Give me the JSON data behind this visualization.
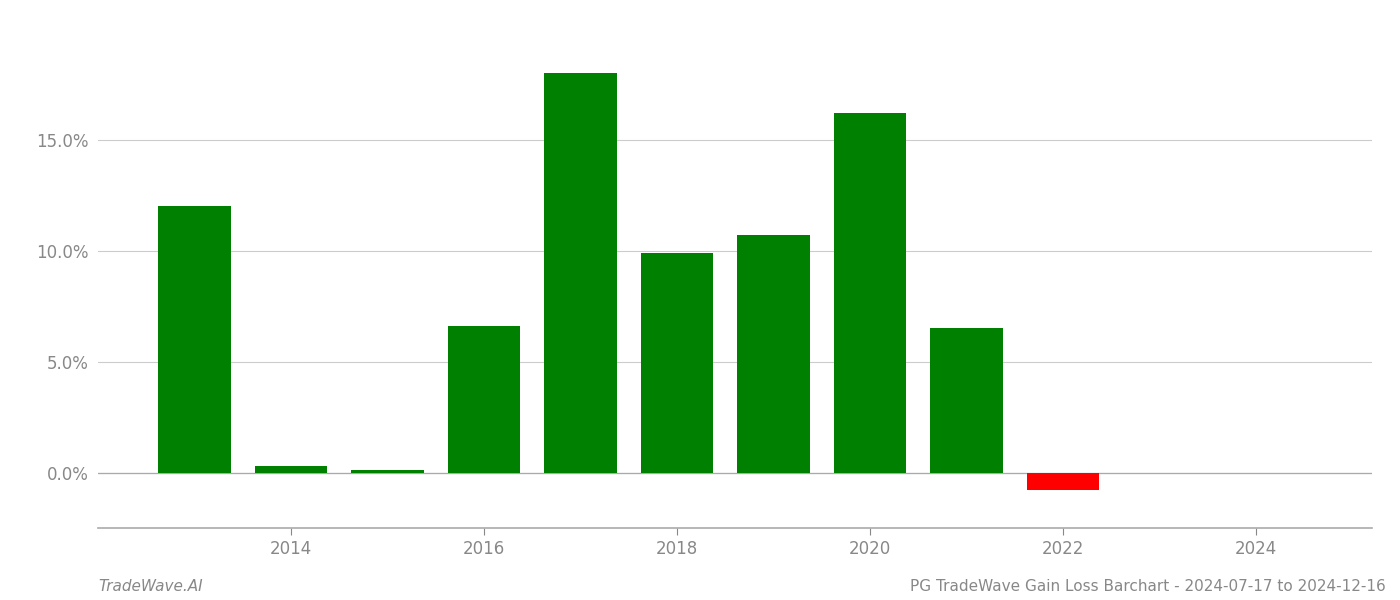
{
  "years": [
    2013,
    2014,
    2015,
    2016,
    2017,
    2018,
    2019,
    2020,
    2021,
    2022,
    2023
  ],
  "values": [
    0.1202,
    0.003,
    0.001,
    0.066,
    0.18,
    0.099,
    0.107,
    0.162,
    0.065,
    -0.008,
    0.0
  ],
  "bar_colors": [
    "#008000",
    "#008000",
    "#008000",
    "#008000",
    "#008000",
    "#008000",
    "#008000",
    "#008000",
    "#008000",
    "#ff0000",
    "#ffffff"
  ],
  "footer_left": "TradeWave.AI",
  "footer_right": "PG TradeWave Gain Loss Barchart - 2024-07-17 to 2024-12-16",
  "ylim_min": -0.025,
  "ylim_max": 0.205,
  "background_color": "#ffffff",
  "bar_width": 0.75,
  "grid_color": "#cccccc",
  "axis_color": "#aaaaaa",
  "text_color": "#888888",
  "yticks": [
    0.0,
    0.05,
    0.1,
    0.15
  ],
  "ytick_labels": [
    "0.0%",
    "5.0%",
    "10.0%",
    "15.0%"
  ],
  "xtick_years": [
    2014,
    2016,
    2018,
    2020,
    2022,
    2024
  ],
  "xlim_min": 2012.0,
  "xlim_max": 2025.2
}
